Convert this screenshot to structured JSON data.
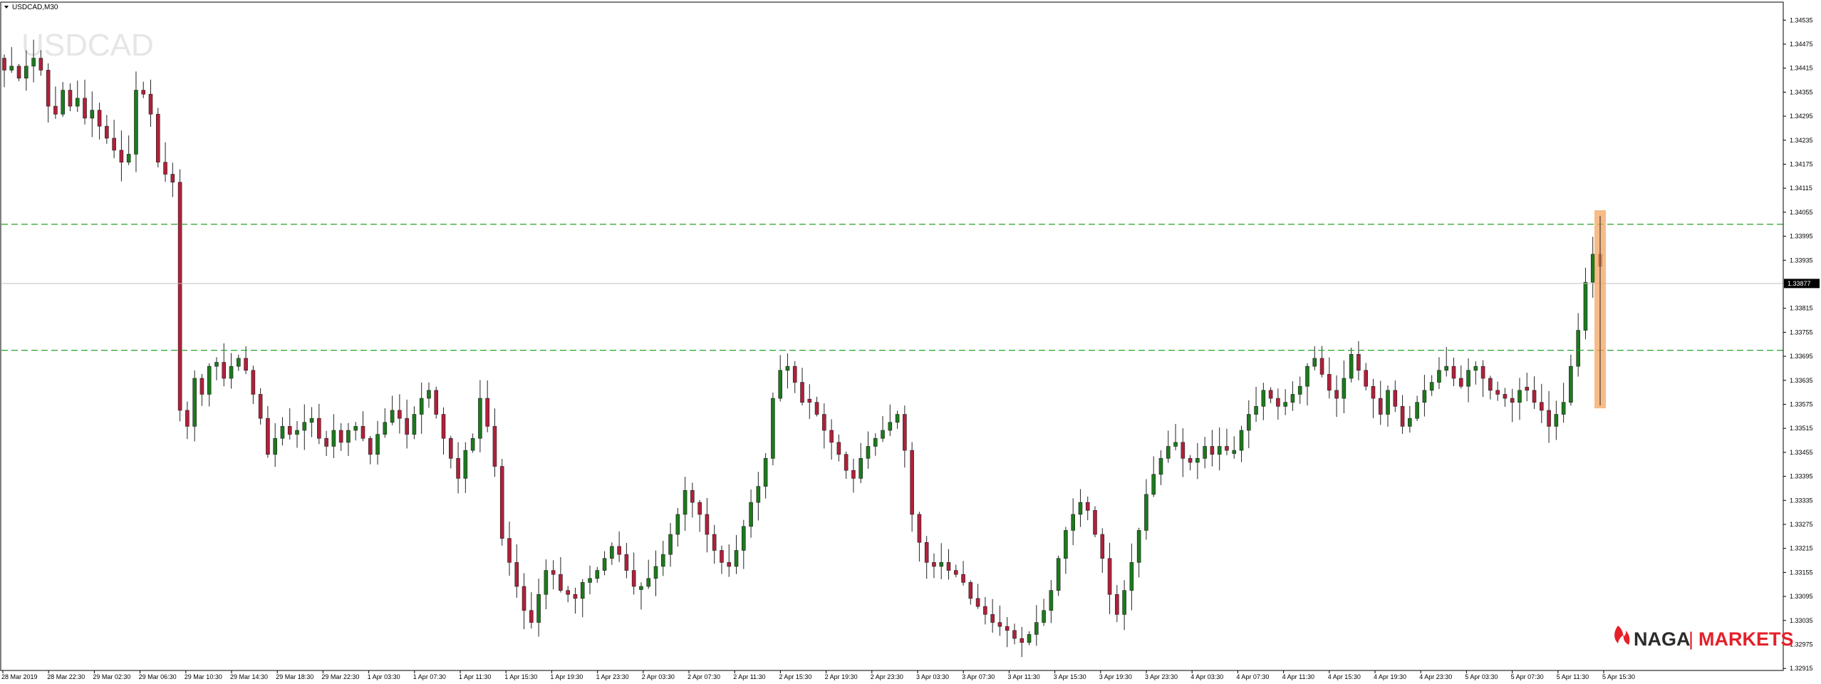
{
  "window": {
    "symbol_label": "USDCAD,M30",
    "watermark": "USDCAD"
  },
  "logo": {
    "brand_left": "NAGA",
    "separator": "|",
    "brand_right": "MARKETS",
    "accent_color": "#e4202a",
    "text_color": "#2b2b2b"
  },
  "colors": {
    "bull_candle": "#1c7a1c",
    "bear_candle": "#b0203a",
    "level_line": "#2aa12a",
    "highlight": "#f4a460",
    "current_price_line": "#c0c0c0"
  },
  "chart_data": {
    "type": "candlestick",
    "title": "USDCAD,M30",
    "ylim": [
      1.3291,
      1.3458
    ],
    "y_ticks": [
      "1.34535",
      "1.34475",
      "1.34415",
      "1.34355",
      "1.34295",
      "1.34235",
      "1.34175",
      "1.34115",
      "1.34055",
      "1.33995",
      "1.33935",
      "1.33877",
      "1.33815",
      "1.33755",
      "1.33695",
      "1.33635",
      "1.33575",
      "1.33515",
      "1.33455",
      "1.33395",
      "1.33335",
      "1.33275",
      "1.33215",
      "1.33155",
      "1.33095",
      "1.33035",
      "1.32975",
      "1.32915"
    ],
    "x_ticks": [
      "28 Mar 2019",
      "28 Mar 22:30",
      "29 Mar 02:30",
      "29 Mar 06:30",
      "29 Mar 10:30",
      "29 Mar 14:30",
      "29 Mar 18:30",
      "29 Mar 22:30",
      "1 Apr 03:30",
      "1 Apr 07:30",
      "1 Apr 11:30",
      "1 Apr 15:30",
      "1 Apr 19:30",
      "1 Apr 23:30",
      "2 Apr 03:30",
      "2 Apr 07:30",
      "2 Apr 11:30",
      "2 Apr 15:30",
      "2 Apr 19:30",
      "2 Apr 23:30",
      "3 Apr 03:30",
      "3 Apr 07:30",
      "3 Apr 11:30",
      "3 Apr 15:30",
      "3 Apr 19:30",
      "3 Apr 23:30",
      "4 Apr 03:30",
      "4 Apr 07:30",
      "4 Apr 11:30",
      "4 Apr 15:30",
      "4 Apr 19:30",
      "4 Apr 23:30",
      "5 Apr 03:30",
      "5 Apr 07:30",
      "5 Apr 11:30",
      "5 Apr 15:30"
    ],
    "current_price": "1.33877",
    "levels": [
      1.34025,
      1.3371
    ],
    "highlight_range": [
      1.33565,
      1.3406
    ],
    "close_path": [
      1.3441,
      1.3442,
      1.3439,
      1.3442,
      1.3444,
      1.3441,
      1.3432,
      1.343,
      1.3436,
      1.3432,
      1.3434,
      1.3429,
      1.3431,
      1.3427,
      1.3424,
      1.3421,
      1.3418,
      1.342,
      1.3436,
      1.3435,
      1.343,
      1.3418,
      1.3415,
      1.3413,
      1.3356,
      1.3352,
      1.3364,
      1.336,
      1.3367,
      1.3368,
      1.3364,
      1.3367,
      1.3369,
      1.3366,
      1.336,
      1.3354,
      1.3345,
      1.3349,
      1.3352,
      1.335,
      1.3351,
      1.3353,
      1.3354,
      1.3349,
      1.3347,
      1.3351,
      1.3348,
      1.3351,
      1.3352,
      1.3349,
      1.3345,
      1.335,
      1.3353,
      1.3356,
      1.3354,
      1.335,
      1.3355,
      1.3359,
      1.3361,
      1.3355,
      1.3349,
      1.3344,
      1.3339,
      1.3346,
      1.3349,
      1.3359,
      1.3352,
      1.3342,
      1.3324,
      1.3318,
      1.3312,
      1.3306,
      1.3303,
      1.331,
      1.3316,
      1.3315,
      1.3311,
      1.331,
      1.3309,
      1.3313,
      1.3314,
      1.3316,
      1.3319,
      1.3322,
      1.332,
      1.3316,
      1.3312,
      1.3312,
      1.3314,
      1.3317,
      1.332,
      1.3325,
      1.333,
      1.3336,
      1.3333,
      1.333,
      1.3325,
      1.3321,
      1.3318,
      1.3317,
      1.3321,
      1.3327,
      1.3333,
      1.3337,
      1.3344,
      1.3359,
      1.3366,
      1.3367,
      1.3363,
      1.3358,
      1.3358,
      1.3355,
      1.3351,
      1.3348,
      1.3345,
      1.3341,
      1.3339,
      1.3344,
      1.3347,
      1.3349,
      1.3351,
      1.3353,
      1.3355,
      1.3346,
      1.333,
      1.3323,
      1.3318,
      1.3317,
      1.3318,
      1.3316,
      1.3315,
      1.3313,
      1.3309,
      1.3307,
      1.3305,
      1.3303,
      1.3302,
      1.3301,
      1.3299,
      1.3298,
      1.33,
      1.3303,
      1.3306,
      1.3311,
      1.3319,
      1.3326,
      1.333,
      1.3333,
      1.3331,
      1.3325,
      1.3319,
      1.331,
      1.3305,
      1.3311,
      1.3318,
      1.3326,
      1.3335,
      1.334,
      1.3344,
      1.3347,
      1.3348,
      1.3344,
      1.3343,
      1.3344,
      1.3347,
      1.3345,
      1.3347,
      1.3346,
      1.3346,
      1.3351,
      1.3355,
      1.3357,
      1.3361,
      1.3359,
      1.3357,
      1.3358,
      1.336,
      1.3362,
      1.3367,
      1.3369,
      1.3365,
      1.3361,
      1.3359,
      1.3364,
      1.337,
      1.3366,
      1.3362,
      1.3359,
      1.3355,
      1.3361,
      1.3357,
      1.3352,
      1.3354,
      1.3358,
      1.3361,
      1.3363,
      1.3366,
      1.3367,
      1.3364,
      1.3362,
      1.3366,
      1.3367,
      1.3364,
      1.3361,
      1.336,
      1.3359,
      1.3358,
      1.3361,
      1.3361,
      1.3358,
      1.3356,
      1.3352,
      1.3355,
      1.3358,
      1.3367,
      1.3376,
      1.3388,
      1.3395,
      1.3392
    ]
  }
}
